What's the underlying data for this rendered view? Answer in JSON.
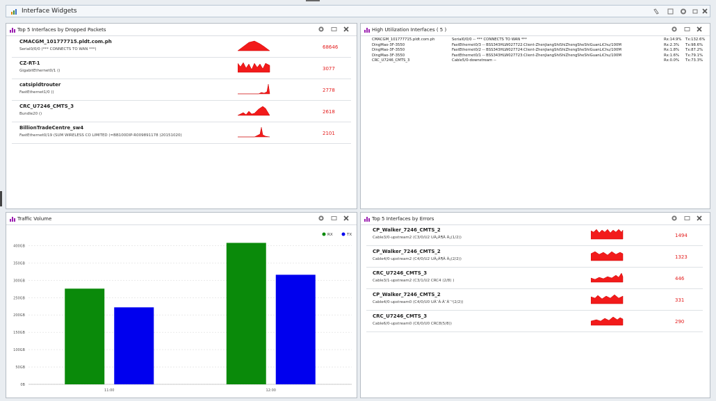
{
  "header": {
    "title": "Interface Widgets"
  },
  "dropped": {
    "title": "Top 5 Interfaces by Dropped Packets",
    "rows": [
      {
        "name": "CMACGM_101777715.pldt.com.ph",
        "detail": "Serial0/0/0 (*** CONNECTS TO WAN ***)",
        "value": 68646
      },
      {
        "name": "CZ-RT-1",
        "detail": "GigabitEthernet0/1 ()",
        "value": 3077
      },
      {
        "name": "catsipldtrouter",
        "detail": "FastEthernet1/0 ()",
        "value": 2778
      },
      {
        "name": "CRC_U7246_CMTS_3",
        "detail": "Bundle20 ()",
        "value": 2618
      },
      {
        "name": "BillionTradeCentre_sw4",
        "detail": "FastEthernet0/19 (SUM WIRELESS CO LIMITED (=BB100DIP-R009891178 )20151020)",
        "value": 2101
      }
    ]
  },
  "utilization": {
    "title": "High Utilization Interfaces ( 5 )",
    "rows": [
      [
        "CMACGM_101777715.pldt.com.ph",
        "Serial0/0/0 -- *** CONNECTS TO WAN ***",
        "Rx:14.9%",
        "Tx:132.6%"
      ],
      [
        "DingMao-3F-3550",
        "FastEthernet0/3 -- BSS343HLW027722:Client-ZhenJiangShiShiZhengSheShiGuanLiChu/100M",
        "Rx:2.3%",
        "Tx:98.6%"
      ],
      [
        "DingMao-3F-3550",
        "FastEthernet0/2 -- BSS343HLW027724:Client-ZhenJiangShiShiZhengSheShiGuanLiChu/100M",
        "Rx:1.8%",
        "Tx:87.2%"
      ],
      [
        "DingMao-3F-3550",
        "FastEthernet0/1 -- BSS343HLW027723:Client-ZhenJiangShiShiZhengSheShiGuanLiChu/100M",
        "Rx:1.6%",
        "Tx:79.1%"
      ],
      [
        "CRC_U7246_CMTS_3",
        "Cable5/0-downstream --",
        "Rx:0.0%",
        "Tx:73.3%"
      ]
    ]
  },
  "chart_data": {
    "type": "bar",
    "title": "Traffic Volume",
    "categories": [
      "11:00",
      "12:00"
    ],
    "series": [
      {
        "name": "RX",
        "color": "#0a8a0a",
        "values": [
          276,
          408
        ]
      },
      {
        "name": "TX",
        "color": "#0000ee",
        "values": [
          222,
          316
        ]
      }
    ],
    "ylim": [
      0,
      445
    ],
    "yticks": [
      {
        "value": 0,
        "label": "0B"
      },
      {
        "value": 50,
        "label": "50GB"
      },
      {
        "value": 100,
        "label": "100GB"
      },
      {
        "value": 150,
        "label": "150GB"
      },
      {
        "value": 200,
        "label": "200GB"
      },
      {
        "value": 250,
        "label": "250GB"
      },
      {
        "value": 300,
        "label": "300GB"
      },
      {
        "value": 350,
        "label": "350GB"
      },
      {
        "value": 400,
        "label": "400GB"
      }
    ],
    "grid": true,
    "legend": "top-right"
  },
  "errors": {
    "title": "Top 5 Interfaces by Errors",
    "rows": [
      {
        "name": "CP_Walker_7246_CMTS_2",
        "detail": "Cable3/0-upstream2 (C3/0/U2 UÃ¡Ã¶Ã  Ã¡(1/2))",
        "value": 1494
      },
      {
        "name": "CP_Walker_7246_CMTS_2",
        "detail": "Cable4/0-upstream2 (C4/0/U2 UÃ¡Ã¶Ã  Ã¡(2/2))",
        "value": 1323
      },
      {
        "name": "CRC_U7246_CMTS_3",
        "detail": "Cable3/1-upstream2 (C3/1/U2 CRC4 (2/8) )",
        "value": 446
      },
      {
        "name": "CP_Walker_7246_CMTS_2",
        "detail": "Cable4/0-upstream0 (C4/0/U0 UÃ¨Ã·Ã¨Ã¨¹(2/2))",
        "value": 331
      },
      {
        "name": "CRC_U7246_CMTS_3",
        "detail": "Cable6/0-upstream0 (C6/0/U0 CRC8(5/8))",
        "value": 290
      }
    ]
  }
}
